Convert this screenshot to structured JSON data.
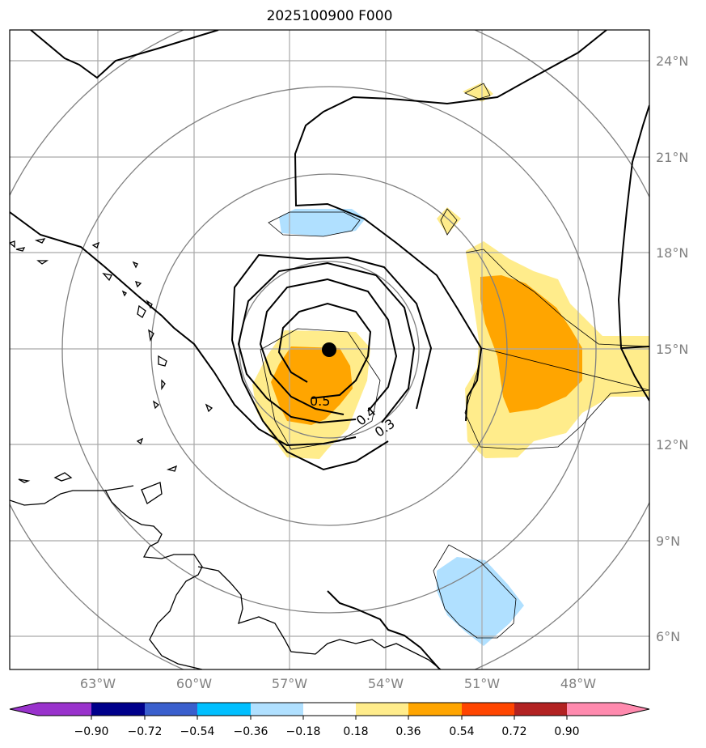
{
  "title": "2025100900 F000",
  "lat_labels": [
    "24°N",
    "21°N",
    "18°N",
    "15°N",
    "12°N",
    "9°N",
    "6°N"
  ],
  "lon_labels": [
    "63°W",
    "60°W",
    "57°W",
    "54°W",
    "51°W",
    "48°W"
  ],
  "contour_labels": [
    "0.5",
    "0.4",
    "0.3"
  ],
  "colorbar": {
    "ticks": [
      "−0.90",
      "−0.72",
      "−0.54",
      "−0.36",
      "−0.18",
      "0.18",
      "0.36",
      "0.54",
      "0.72",
      "0.90"
    ],
    "colors": [
      "#9932cc",
      "#00008b",
      "#3a5fcd",
      "#00bfff",
      "#b0e0ff",
      "#ffffff",
      "#ffec8b",
      "#ffa500",
      "#ff4500",
      "#b22222",
      "#ff8aae"
    ]
  },
  "colors": {
    "grid": "#a9a9a9",
    "range_rings": "#808080",
    "pos_light": "#ffec8b",
    "pos_mid": "#ffa500",
    "neg_light": "#b0e0ff"
  }
}
